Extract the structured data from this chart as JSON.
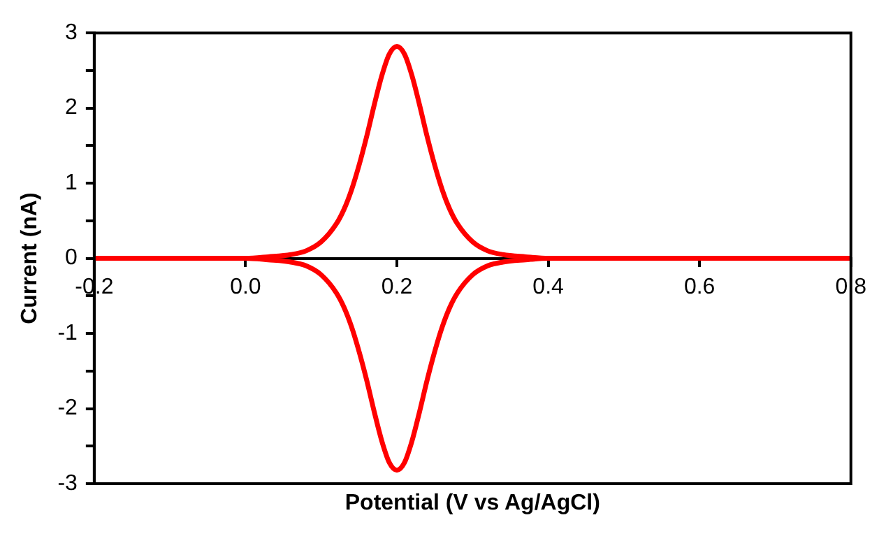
{
  "chart_data": {
    "type": "line",
    "xlabel": "Potential (V vs Ag/AgCl)",
    "ylabel": "Current (nA)",
    "xlim": [
      -0.2,
      0.8
    ],
    "xticks": [
      -0.2,
      {
        "value": 0,
        "label": "0.0"
      },
      0.2,
      0.4,
      0.6,
      0.8
    ],
    "ylim": [
      -3,
      3
    ],
    "yticks": [
      -3,
      {
        "value": -2.5,
        "label": null
      },
      -2,
      {
        "value": -1.5,
        "label": null
      },
      -1,
      {
        "value": -0.5,
        "label": null
      },
      0,
      {
        "value": 0.5,
        "label": null
      },
      1,
      {
        "value": 1.5,
        "label": null
      },
      2,
      {
        "value": 2.5,
        "label": null
      },
      3
    ],
    "grid": false,
    "legend": false,
    "marker": "none",
    "line_style": "solid",
    "x": [
      -0.2,
      0,
      0.03,
      0.06,
      0.08,
      0.1,
      0.12,
      0.13,
      0.14,
      0.15,
      0.16,
      0.17,
      0.18,
      0.19,
      0.2,
      0.21,
      0.22,
      0.23,
      0.24,
      0.25,
      0.26,
      0.27,
      0.28,
      0.3,
      0.32,
      0.34,
      0.37,
      0.4,
      0.8
    ],
    "series": [
      {
        "color": "#ff0000",
        "values": [
          0,
          0,
          0.02,
          0.05,
          0.1,
          0.22,
          0.46,
          0.65,
          0.91,
          1.24,
          1.62,
          2.04,
          2.43,
          2.72,
          2.82,
          2.72,
          2.43,
          2.04,
          1.62,
          1.24,
          0.91,
          0.65,
          0.46,
          0.22,
          0.1,
          0.05,
          0.02,
          0,
          0
        ]
      },
      {
        "color": "#ff0000",
        "values": [
          0,
          0,
          -0.02,
          -0.05,
          -0.1,
          -0.22,
          -0.46,
          -0.65,
          -0.91,
          -1.24,
          -1.62,
          -2.04,
          -2.43,
          -2.72,
          -2.82,
          -2.72,
          -2.43,
          -2.04,
          -1.62,
          -1.24,
          -0.91,
          -0.65,
          -0.46,
          -0.22,
          -0.1,
          -0.05,
          -0.02,
          0,
          0
        ]
      }
    ]
  }
}
